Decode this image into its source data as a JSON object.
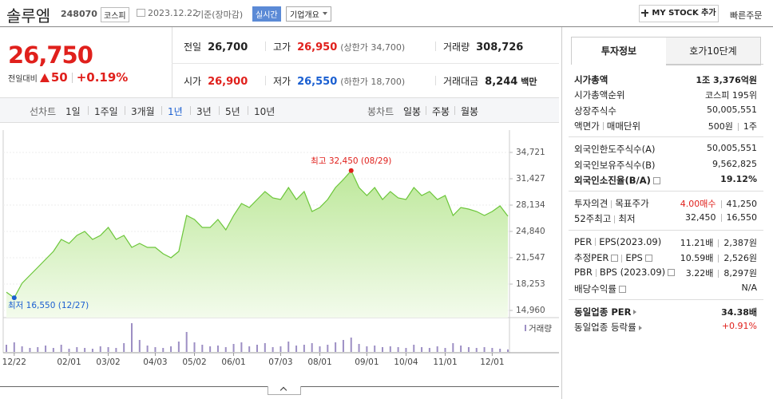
{
  "header": {
    "name": "솔루엠",
    "code": "248070",
    "market": "코스피",
    "date": "2023.12.22",
    "basis": "기준(장마감)",
    "realtime": "실시간",
    "company_info": "기업개요",
    "my_stock": "MY STOCK 추가",
    "quick_order": "빠른주문"
  },
  "quote": {
    "price": "26,750",
    "change_label": "전일대비",
    "change": "50",
    "change_rate": "+0.19%",
    "rows": [
      [
        {
          "label": "전일",
          "value": "26,700"
        },
        {
          "label": "고가",
          "value": "26,950",
          "note": "(상한가 34,700)",
          "color": "#e0201c"
        },
        {
          "label": "거래량",
          "value": "308,726"
        }
      ],
      [
        {
          "label": "시가",
          "value": "26,900",
          "color": "#e0201c"
        },
        {
          "label": "저가",
          "value": "26,550",
          "note": "(하한가 18,700)",
          "color": "#1a5fd1"
        },
        {
          "label": "거래대금",
          "value": "8,244",
          "unit": "백만"
        }
      ]
    ]
  },
  "chart_tabs": {
    "line_label": "선차트",
    "line_periods": [
      "1일",
      "1주일",
      "3개월",
      "1년",
      "3년",
      "5년",
      "10년"
    ],
    "selected": "1년",
    "candle_label": "봉차트",
    "candle_periods": [
      "일봉",
      "주봉",
      "월봉"
    ]
  },
  "chart_data": {
    "type": "area",
    "color": "#6cc63a",
    "values": [
      17250,
      16550,
      18350,
      19350,
      20350,
      21350,
      22350,
      23840,
      23340,
      24340,
      24840,
      23840,
      24340,
      25340,
      23840,
      24340,
      22840,
      23340,
      22840,
      22840,
      22050,
      21550,
      22350,
      26840,
      26340,
      25340,
      25340,
      26340,
      25040,
      26840,
      28330,
      27830,
      28830,
      29830,
      29030,
      28830,
      30330,
      28830,
      29830,
      27340,
      27830,
      28830,
      30330,
      31330,
      32450,
      30330,
      29330,
      30330,
      28830,
      29830,
      29030,
      28830,
      30330,
      29330,
      29830,
      28830,
      29330,
      26840,
      27830,
      27630,
      27340,
      26840,
      27340,
      28030,
      26750
    ],
    "volume": {
      "name": "거래량",
      "color": "#9d8fc4",
      "values": [
        900000,
        1200000,
        700000,
        500000,
        600000,
        800000,
        500000,
        900000,
        400000,
        600000,
        500000,
        400000,
        700000,
        600000,
        500000,
        1100000,
        3600000,
        1500000,
        800000,
        600000,
        500000,
        700000,
        1300000,
        2500000,
        1200000,
        900000,
        700000,
        800000,
        600000,
        1000000,
        1200000,
        700000,
        900000,
        1100000,
        600000,
        700000,
        1300000,
        800000,
        900000,
        1100000,
        700000,
        900000,
        1200000,
        1500000,
        1800000,
        1000000,
        700000,
        800000,
        600000,
        700000,
        600000,
        500000,
        900000,
        600000,
        500000,
        700000,
        500000,
        1100000,
        800000,
        600000,
        500000,
        600000,
        500000,
        400000,
        308726
      ]
    },
    "ylim": [
      14960,
      34721
    ],
    "yticks": [
      {
        "value": 34721,
        "label": "34,721"
      },
      {
        "value": 31427,
        "label": "31,427"
      },
      {
        "value": 28134,
        "label": "28,134"
      },
      {
        "value": 24840,
        "label": "24,840"
      },
      {
        "value": 21547,
        "label": "21,547"
      },
      {
        "value": 18253,
        "label": "18,253"
      },
      {
        "value": 14960,
        "label": "14,960"
      }
    ],
    "xticks": [
      {
        "value": 1,
        "label": "12/22"
      },
      {
        "value": 8,
        "label": "02/01"
      },
      {
        "value": 13,
        "label": "03/02"
      },
      {
        "value": 19,
        "label": "04/03"
      },
      {
        "value": 24,
        "label": "05/02"
      },
      {
        "value": 29,
        "label": "06/01"
      },
      {
        "value": 35,
        "label": "07/03"
      },
      {
        "value": 40,
        "label": "08/01"
      },
      {
        "value": 46,
        "label": "09/01"
      },
      {
        "value": 51,
        "label": "10/04"
      },
      {
        "value": 56,
        "label": "11/01"
      },
      {
        "value": 62,
        "label": "12/01"
      }
    ],
    "annotations": {
      "high": "최고 32,450 (08/29)",
      "low": "최저 16,550 (12/27)"
    }
  },
  "invest_info": {
    "tabs": [
      "투자정보",
      "호가10단계"
    ],
    "groups": [
      [
        {
          "labels": [
            "시가총액"
          ],
          "values": [
            "1조 3,376억원"
          ],
          "bold": true
        },
        {
          "labels": [
            "시가총액순위"
          ],
          "values": [
            "코스피 195위"
          ]
        },
        {
          "labels": [
            "상장주식수"
          ],
          "values": [
            "50,005,551"
          ]
        },
        {
          "labels": [
            "액면가",
            "매매단위"
          ],
          "values": [
            "500원",
            "1주"
          ]
        }
      ],
      [
        {
          "labels": [
            "외국인한도주식수(A)"
          ],
          "values": [
            "50,005,551"
          ]
        },
        {
          "labels": [
            "외국인보유주식수(B)"
          ],
          "values": [
            "9,562,825"
          ]
        },
        {
          "labels": [
            "외국인소진율(B/A)"
          ],
          "values": [
            "19.12%"
          ],
          "bold": true,
          "help": [
            0
          ]
        }
      ],
      [
        {
          "labels": [
            "투자의견",
            "목표주가"
          ],
          "values": [
            {
              "text": "4.00매수",
              "color": "#e0201c"
            },
            "41,250"
          ]
        },
        {
          "labels": [
            "52주최고",
            "최저"
          ],
          "values": [
            "32,450",
            "16,550"
          ]
        }
      ],
      [
        {
          "labels": [
            "PER",
            "EPS(2023.09)"
          ],
          "values": [
            "11.21배",
            "2,387원"
          ]
        },
        {
          "labels": [
            "추정PER",
            "EPS"
          ],
          "values": [
            "10.59배",
            "2,526원"
          ],
          "help": [
            0,
            1
          ]
        },
        {
          "labels": [
            "PBR",
            "BPS (2023.09)"
          ],
          "values": [
            "3.22배",
            "8,297원"
          ],
          "help": [
            1
          ]
        },
        {
          "labels": [
            "배당수익률"
          ],
          "values": [
            "N/A"
          ],
          "help": [
            0
          ]
        }
      ],
      [
        {
          "labels": [
            "동일업종 PER"
          ],
          "values": [
            "34.38배"
          ],
          "bold": true,
          "arrow": true
        },
        {
          "labels": [
            "동일업종 등락률"
          ],
          "values": [
            {
              "text": "+0.91%",
              "color": "#e0201c"
            }
          ],
          "arrow": true
        }
      ]
    ]
  }
}
